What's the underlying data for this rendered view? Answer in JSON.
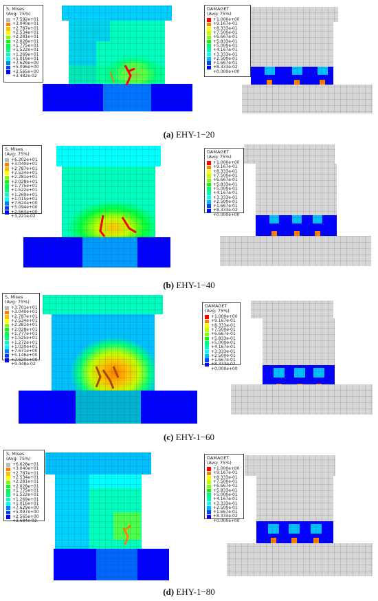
{
  "colors": {
    "contour": [
      "#0000ff",
      "#0040ff",
      "#007fff",
      "#00bfff",
      "#00ffff",
      "#00ffbf",
      "#00ff7f",
      "#00ff40",
      "#00ff00",
      "#7fff00",
      "#bfff00",
      "#ffff00",
      "#ffbf00",
      "#ff7f00",
      "#ff0000",
      "#bbbbbb"
    ],
    "undeformed_mesh": "#d6d6d6"
  },
  "panels": [
    {
      "id": "a",
      "caption_letter": "(a)",
      "caption_name": "EHY-1−20",
      "mises": {
        "title": "S, Mises",
        "avg": "(Avg: 75%)",
        "values": [
          "+7.592e+01",
          "+3.040e+01",
          "+2.787e+01",
          "+2.534e+01",
          "+2.281e+01",
          "+2.028e+01",
          "+1.775e+01",
          "+1.522e+01",
          "+1.269e+01",
          "+1.016e+01",
          "+7.626e+00",
          "+5.096e+00",
          "+2.565e+00",
          "+3.482e-02"
        ]
      },
      "damage": {
        "title": "DAMAGET",
        "avg": "(Avg: 75%)",
        "values": [
          "+1.000e+00",
          "+9.167e-01",
          "+8.333e-01",
          "+7.500e-01",
          "+6.667e-01",
          "+5.833e-01",
          "+5.000e-01",
          "+4.167e-01",
          "+3.333e-01",
          "+2.500e-01",
          "+1.667e-01",
          "+8.333e-02",
          "+0.000e+00"
        ]
      }
    },
    {
      "id": "b",
      "caption_letter": "(b)",
      "caption_name": "EHY-1−40",
      "mises": {
        "title": "S, Mises",
        "avg": "(Avg: 75%)",
        "values": [
          "+6.202e+01",
          "+3.040e+01",
          "+2.787e+01",
          "+2.534e+01",
          "+2.281e+01",
          "+2.028e+01",
          "+1.775e+01",
          "+1.522e+01",
          "+1.269e+01",
          "+1.015e+01",
          "+7.624e+00",
          "+5.094e+00",
          "+2.563e+00",
          "+3.221e-02"
        ]
      },
      "damage": {
        "title": "DAMAGET",
        "avg": "(Avg: 75%)",
        "values": [
          "+1.000e+00",
          "+9.167e-01",
          "+8.333e-01",
          "+7.500e-01",
          "+6.667e-01",
          "+5.833e-01",
          "+5.000e-01",
          "+4.167e-01",
          "+3.333e-01",
          "+2.500e-01",
          "+1.667e-01",
          "+8.333e-02",
          "+0.000e+00"
        ]
      }
    },
    {
      "id": "c",
      "caption_letter": "(c)",
      "caption_name": "EHY-1−60",
      "mises": {
        "title": "S, Mises",
        "avg": "(Avg: 75%)",
        "values": [
          "+3.701e+01",
          "+3.040e+01",
          "+2.787e+01",
          "+2.534e+01",
          "+2.281e+01",
          "+2.028e+01",
          "+1.777e+01",
          "+1.525e+01",
          "+1.272e+01",
          "+1.020e+01",
          "+7.671e+00",
          "+5.146e+00",
          "+2.620e+00",
          "+9.448e-02"
        ]
      },
      "damage": {
        "title": "DAMAGET",
        "avg": "(Avg: 75%)",
        "values": [
          "+1.000e+00",
          "+9.167e-01",
          "+8.333e-01",
          "+7.500e-01",
          "+6.667e-01",
          "+5.833e-01",
          "+5.000e-01",
          "+4.167e-01",
          "+3.333e-01",
          "+2.500e-01",
          "+1.667e-01",
          "+8.333e-02",
          "+0.000e+00"
        ]
      }
    },
    {
      "id": "d",
      "caption_letter": "(d)",
      "caption_name": "EHY-1−80",
      "mises": {
        "title": "S, Mises",
        "avg": "(Avg: 75%)",
        "values": [
          "+6.628e+01",
          "+3.040e+01",
          "+2.787e+01",
          "+2.534e+01",
          "+2.281e+01",
          "+2.028e+01",
          "+1.775e+01",
          "+1.522e+01",
          "+1.269e+01",
          "+1.016e+01",
          "+7.629e+00",
          "+5.097e+00",
          "+2.565e+00",
          "+3.684e-02"
        ]
      },
      "damage": {
        "title": "DAMAGET",
        "avg": "(Avg: 75%)",
        "values": [
          "+1.000e+00",
          "+9.167e-01",
          "+8.333e-01",
          "+7.500e-01",
          "+6.667e-01",
          "+5.833e-01",
          "+5.000e-01",
          "+4.167e-01",
          "+3.333e-01",
          "+2.500e-01",
          "+1.667e-01",
          "+8.333e-02",
          "+0.000e+00"
        ]
      }
    }
  ]
}
